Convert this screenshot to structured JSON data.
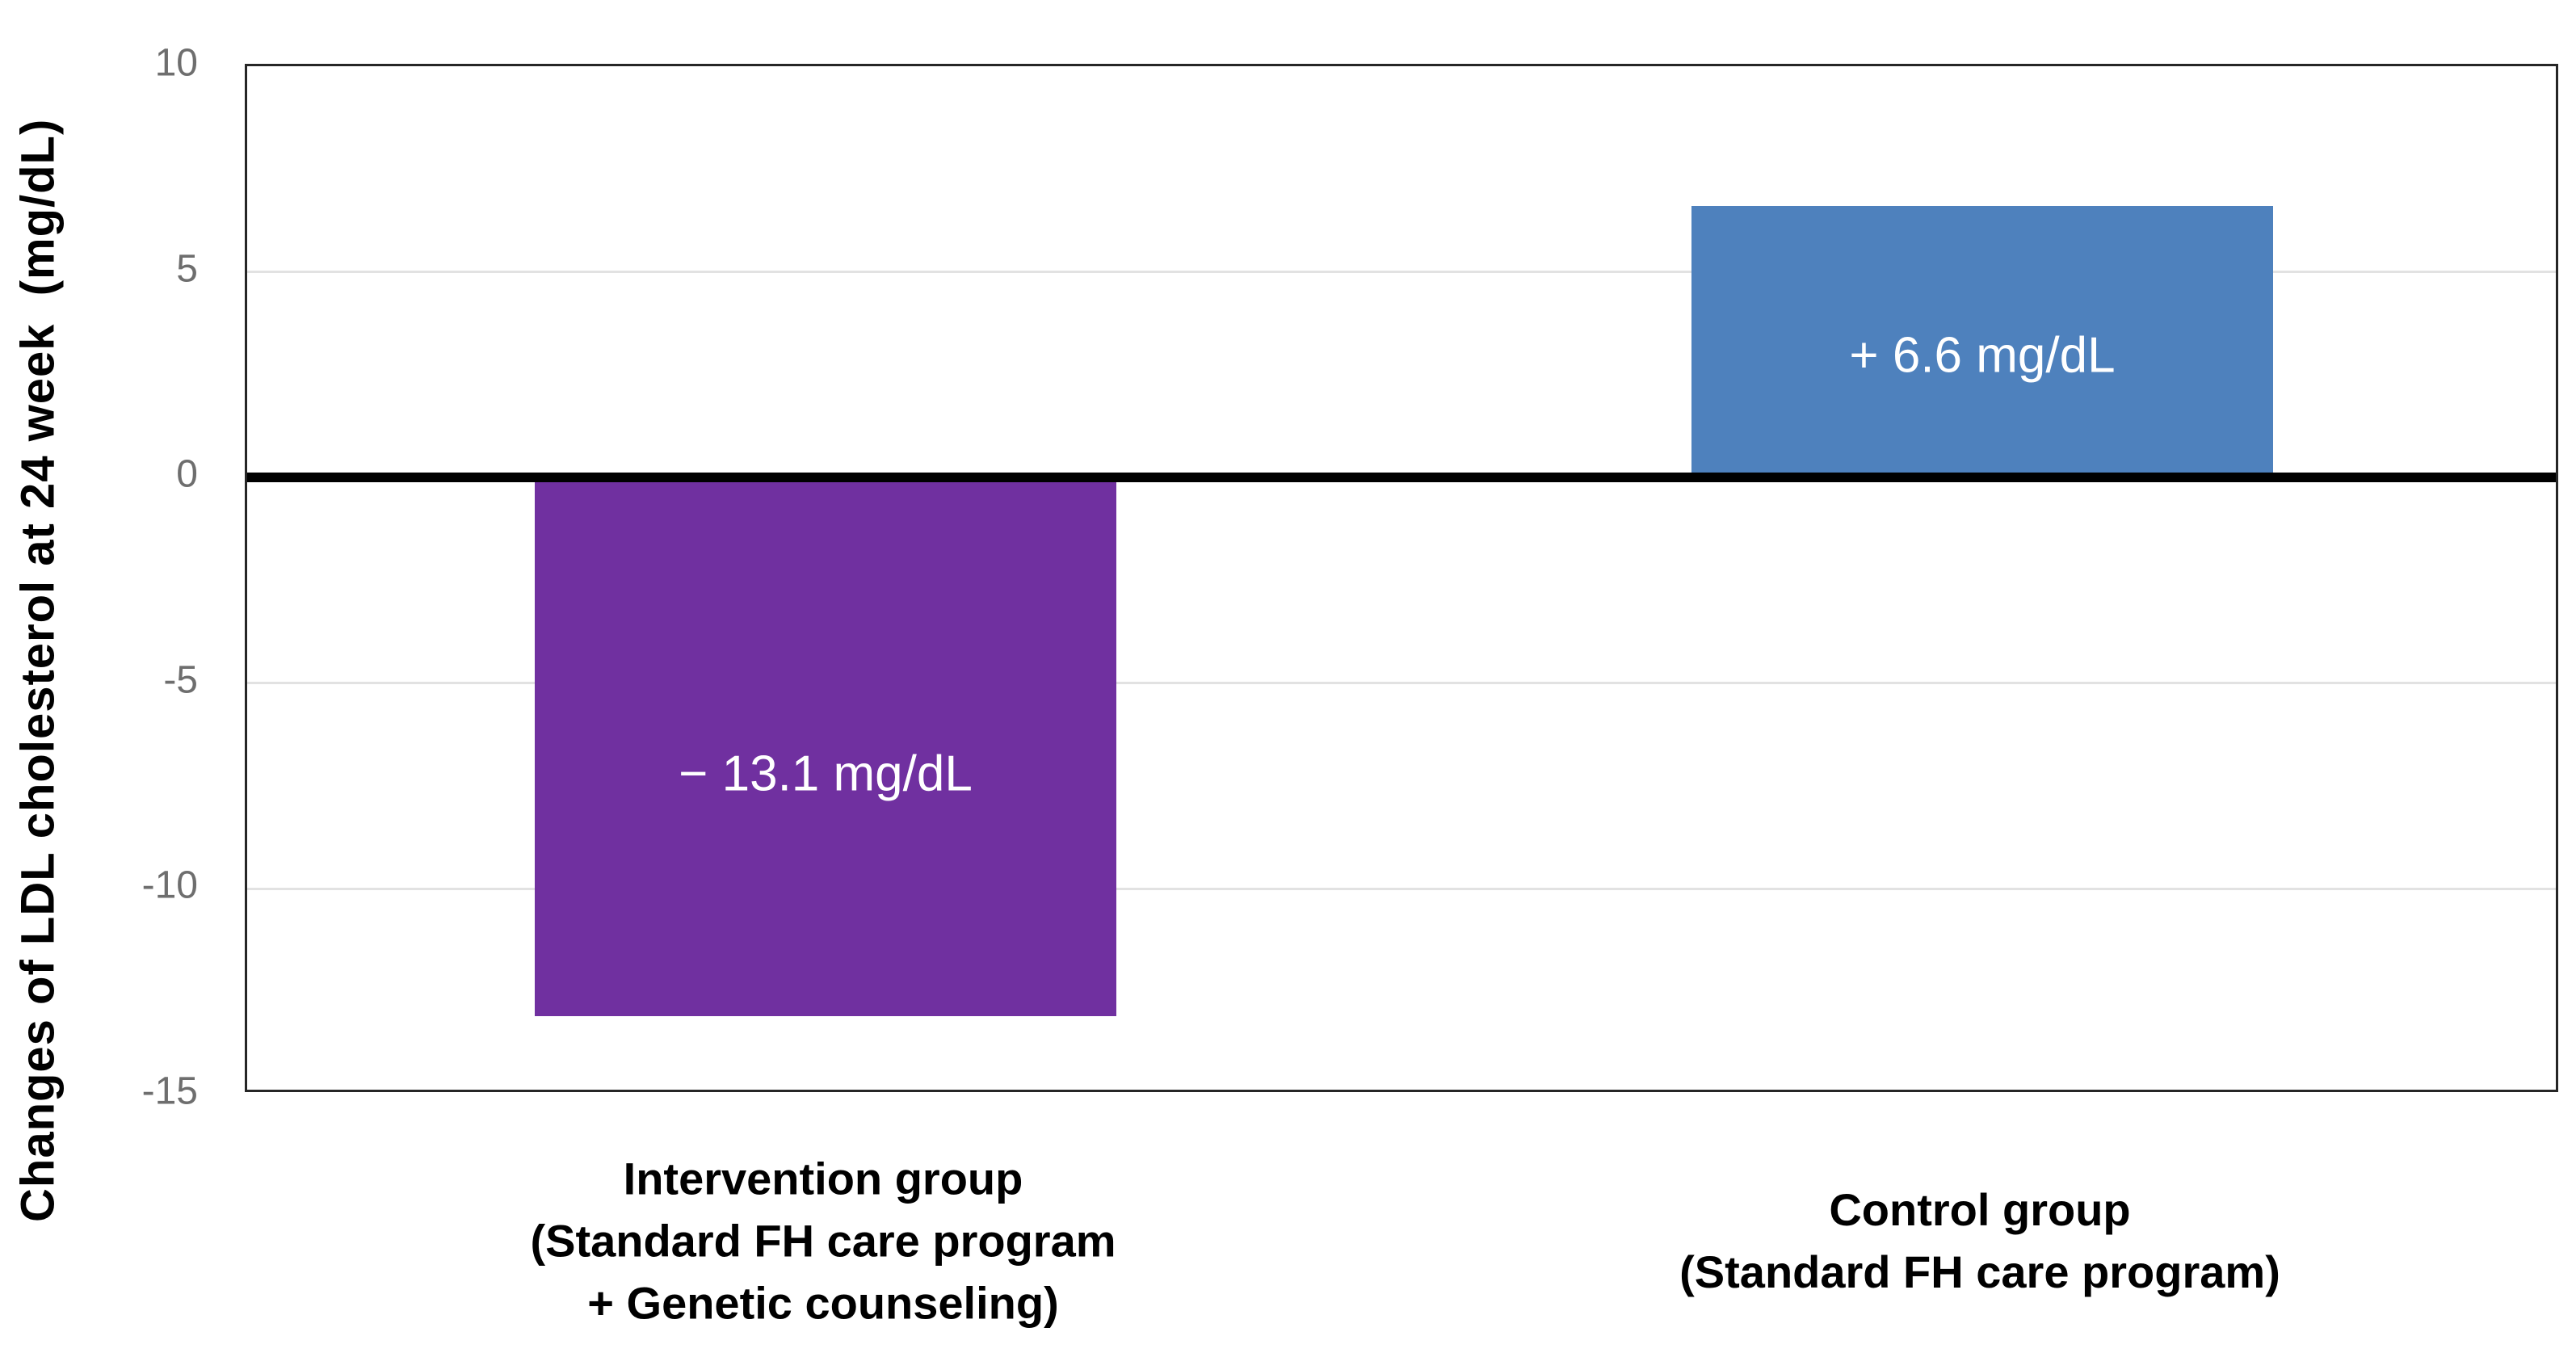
{
  "figure": {
    "background_color": "#ffffff"
  },
  "chart_data": {
    "type": "bar",
    "title": "",
    "xlabel": "",
    "ylabel": "Changes of LDL cholesterol at 24 week  (mg/dL)",
    "ylim": [
      -15,
      10
    ],
    "yticks": [
      10,
      5,
      0,
      -5,
      -10,
      -15
    ],
    "gridline_values": [
      5,
      -5,
      -10
    ],
    "grid": true,
    "legend": false,
    "zero_baseline_emphasized": true,
    "categories": [
      {
        "name": "intervention-group",
        "lines": [
          "Intervention group",
          "(Standard FH care program",
          "+ Genetic counseling)"
        ]
      },
      {
        "name": "control-group",
        "lines": [
          "Control group",
          "(Standard FH care program)"
        ]
      }
    ],
    "values": [
      -13.1,
      6.6
    ],
    "bar_labels": [
      "− 13.1 mg/dL",
      "+ 6.6 mg/dL"
    ],
    "bar_colors": [
      "#7030A0",
      "#4E81BD"
    ],
    "bar_label_color": "#ffffff",
    "axis_border_color": "#262626",
    "zero_line_color": "#000000",
    "gridline_color": "#e2e2e2",
    "tick_label_color": "#6e6e6e",
    "category_label_color": "#000000"
  }
}
